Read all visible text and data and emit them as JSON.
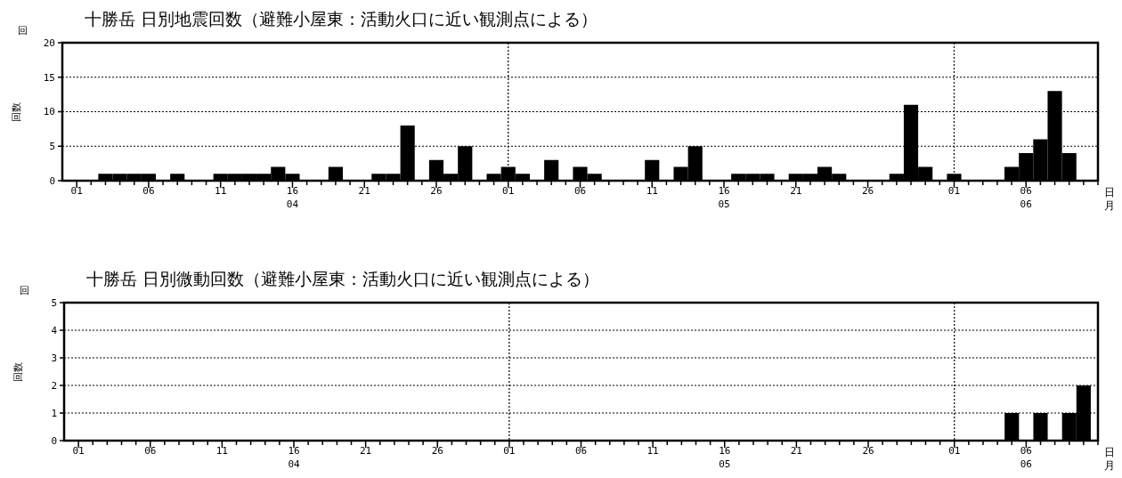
{
  "chart_data": [
    {
      "type": "bar",
      "title": "十勝岳 日別地震回数（避難小屋東：活動火口に近い観測点による）",
      "ylabel": "回数",
      "xlabel": "日月",
      "annotations": [
        "回"
      ],
      "x": [
        "--04-01",
        "--04-02",
        "--04-03",
        "--04-04",
        "--04-05",
        "--04-06",
        "--04-07",
        "--04-08",
        "--04-09",
        "--04-10",
        "--04-11",
        "--04-12",
        "--04-13",
        "--04-14",
        "--04-15",
        "--04-16",
        "--04-17",
        "--04-18",
        "--04-19",
        "--04-20",
        "--04-21",
        "--04-22",
        "--04-23",
        "--04-24",
        "--04-25",
        "--04-26",
        "--04-27",
        "--04-28",
        "--04-29",
        "--04-30",
        "--05-01",
        "--05-02",
        "--05-03",
        "--05-04",
        "--05-05",
        "--05-06",
        "--05-07",
        "--05-08",
        "--05-09",
        "--05-10",
        "--05-11",
        "--05-12",
        "--05-13",
        "--05-14",
        "--05-15",
        "--05-16",
        "--05-17",
        "--05-18",
        "--05-19",
        "--05-20",
        "--05-21",
        "--05-22",
        "--05-23",
        "--05-24",
        "--05-25",
        "--05-26",
        "--05-27",
        "--05-28",
        "--05-29",
        "--05-30",
        "--05-31",
        "--06-01",
        "--06-02",
        "--06-03",
        "--06-04",
        "--06-05",
        "--06-06",
        "--06-07",
        "--06-08",
        "--06-09",
        "--06-10"
      ],
      "values": [
        0,
        0,
        1,
        1,
        1,
        1,
        0,
        1,
        0,
        0,
        1,
        1,
        1,
        1,
        2,
        1,
        0,
        0,
        2,
        0,
        0,
        1,
        1,
        8,
        0,
        3,
        1,
        5,
        0,
        1,
        2,
        1,
        0,
        3,
        0,
        2,
        1,
        0,
        0,
        0,
        3,
        0,
        2,
        5,
        0,
        0,
        1,
        1,
        1,
        0,
        1,
        1,
        2,
        1,
        0,
        0,
        0,
        1,
        11,
        2,
        0,
        1,
        0,
        0,
        0,
        2,
        4,
        6,
        13,
        4,
        0
      ],
      "color": "#000000",
      "ylim": [
        0,
        20
      ],
      "yticks": [
        0,
        5,
        10,
        15,
        20
      ],
      "grid": "y",
      "xlim": [
        "--03-31",
        "--06-11"
      ],
      "xticks": [
        {
          "value": "--04-01",
          "label": "01"
        },
        {
          "value": "--04-02",
          "label": null
        },
        {
          "value": "--04-03",
          "label": null
        },
        {
          "value": "--04-04",
          "label": null
        },
        {
          "value": "--04-05",
          "label": null
        },
        {
          "value": "--04-06",
          "label": "06"
        },
        {
          "value": "--04-07",
          "label": null
        },
        {
          "value": "--04-08",
          "label": null
        },
        {
          "value": "--04-09",
          "label": null
        },
        {
          "value": "--04-10",
          "label": null
        },
        {
          "value": "--04-11",
          "label": "11"
        },
        {
          "value": "--04-12",
          "label": null
        },
        {
          "value": "--04-13",
          "label": null
        },
        {
          "value": "--04-14",
          "label": null
        },
        {
          "value": "--04-15",
          "label": null
        },
        {
          "value": "--04-16",
          "label": "16\n04"
        },
        {
          "value": "--04-17",
          "label": null
        },
        {
          "value": "--04-18",
          "label": null
        },
        {
          "value": "--04-19",
          "label": null
        },
        {
          "value": "--04-20",
          "label": null
        },
        {
          "value": "--04-21",
          "label": "21"
        },
        {
          "value": "--04-22",
          "label": null
        },
        {
          "value": "--04-23",
          "label": null
        },
        {
          "value": "--04-24",
          "label": null
        },
        {
          "value": "--04-25",
          "label": null
        },
        {
          "value": "--04-26",
          "label": "26"
        },
        {
          "value": "--04-27",
          "label": null
        },
        {
          "value": "--04-28",
          "label": null
        },
        {
          "value": "--04-29",
          "label": null
        },
        {
          "value": "--04-30",
          "label": null
        },
        {
          "value": "--05-01",
          "label": "01"
        },
        {
          "value": "--05-02",
          "label": null
        },
        {
          "value": "--05-03",
          "label": null
        },
        {
          "value": "--05-04",
          "label": null
        },
        {
          "value": "--05-05",
          "label": null
        },
        {
          "value": "--05-06",
          "label": "06"
        },
        {
          "value": "--05-07",
          "label": null
        },
        {
          "value": "--05-08",
          "label": null
        },
        {
          "value": "--05-09",
          "label": null
        },
        {
          "value": "--05-10",
          "label": null
        },
        {
          "value": "--05-11",
          "label": "11"
        },
        {
          "value": "--05-12",
          "label": null
        },
        {
          "value": "--05-13",
          "label": null
        },
        {
          "value": "--05-14",
          "label": null
        },
        {
          "value": "--05-15",
          "label": null
        },
        {
          "value": "--05-16",
          "label": "16\n05"
        },
        {
          "value": "--05-17",
          "label": null
        },
        {
          "value": "--05-18",
          "label": null
        },
        {
          "value": "--05-19",
          "label": null
        },
        {
          "value": "--05-20",
          "label": null
        },
        {
          "value": "--05-21",
          "label": "21"
        },
        {
          "value": "--05-22",
          "label": null
        },
        {
          "value": "--05-23",
          "label": null
        },
        {
          "value": "--05-24",
          "label": null
        },
        {
          "value": "--05-25",
          "label": null
        },
        {
          "value": "--05-26",
          "label": "26"
        },
        {
          "value": "--05-27",
          "label": null
        },
        {
          "value": "--05-28",
          "label": null
        },
        {
          "value": "--05-29",
          "label": null
        },
        {
          "value": "--05-30",
          "label": null
        },
        {
          "value": "--05-31",
          "label": null
        },
        {
          "value": "--06-01",
          "label": "01"
        },
        {
          "value": "--06-02",
          "label": null
        },
        {
          "value": "--06-03",
          "label": null
        },
        {
          "value": "--06-04",
          "label": null
        },
        {
          "value": "--06-05",
          "label": null
        },
        {
          "value": "--06-06",
          "label": "06\n06"
        },
        {
          "value": "--06-07",
          "label": null
        },
        {
          "value": "--06-08",
          "label": null
        },
        {
          "value": "--06-09",
          "label": null
        },
        {
          "value": "--06-10",
          "label": null
        },
        {
          "value": "--06-11",
          "label": null
        }
      ],
      "ref_lines": [
        {
          "axis": "x",
          "value": "--05-01",
          "line_style": "dotted"
        },
        {
          "axis": "x",
          "value": "--06-01",
          "line_style": "dotted"
        }
      ]
    },
    {
      "type": "bar",
      "title": "十勝岳 日別微動回数（避難小屋東：活動火口に近い観測点による）",
      "ylabel": "回数",
      "xlabel": "日月",
      "annotations": [
        "回"
      ],
      "x": [
        "--04-01",
        "--04-02",
        "--04-03",
        "--04-04",
        "--04-05",
        "--04-06",
        "--04-07",
        "--04-08",
        "--04-09",
        "--04-10",
        "--04-11",
        "--04-12",
        "--04-13",
        "--04-14",
        "--04-15",
        "--04-16",
        "--04-17",
        "--04-18",
        "--04-19",
        "--04-20",
        "--04-21",
        "--04-22",
        "--04-23",
        "--04-24",
        "--04-25",
        "--04-26",
        "--04-27",
        "--04-28",
        "--04-29",
        "--04-30",
        "--05-01",
        "--05-02",
        "--05-03",
        "--05-04",
        "--05-05",
        "--05-06",
        "--05-07",
        "--05-08",
        "--05-09",
        "--05-10",
        "--05-11",
        "--05-12",
        "--05-13",
        "--05-14",
        "--05-15",
        "--05-16",
        "--05-17",
        "--05-18",
        "--05-19",
        "--05-20",
        "--05-21",
        "--05-22",
        "--05-23",
        "--05-24",
        "--05-25",
        "--05-26",
        "--05-27",
        "--05-28",
        "--05-29",
        "--05-30",
        "--05-31",
        "--06-01",
        "--06-02",
        "--06-03",
        "--06-04",
        "--06-05",
        "--06-06",
        "--06-07",
        "--06-08",
        "--06-09",
        "--06-10"
      ],
      "values": [
        0,
        0,
        0,
        0,
        0,
        0,
        0,
        0,
        0,
        0,
        0,
        0,
        0,
        0,
        0,
        0,
        0,
        0,
        0,
        0,
        0,
        0,
        0,
        0,
        0,
        0,
        0,
        0,
        0,
        0,
        0,
        0,
        0,
        0,
        0,
        0,
        0,
        0,
        0,
        0,
        0,
        0,
        0,
        0,
        0,
        0,
        0,
        0,
        0,
        0,
        0,
        0,
        0,
        0,
        0,
        0,
        0,
        0,
        0,
        0,
        0,
        0,
        0,
        0,
        0,
        1,
        0,
        1,
        0,
        1,
        2
      ],
      "color": "#000000",
      "ylim": [
        0,
        5
      ],
      "yticks": [
        0,
        1,
        2,
        3,
        4,
        5
      ],
      "grid": "y",
      "xlim": [
        "--03-31",
        "--06-11"
      ],
      "xticks": [
        {
          "value": "--04-01",
          "label": "01"
        },
        {
          "value": "--04-02",
          "label": null
        },
        {
          "value": "--04-03",
          "label": null
        },
        {
          "value": "--04-04",
          "label": null
        },
        {
          "value": "--04-05",
          "label": null
        },
        {
          "value": "--04-06",
          "label": "06"
        },
        {
          "value": "--04-07",
          "label": null
        },
        {
          "value": "--04-08",
          "label": null
        },
        {
          "value": "--04-09",
          "label": null
        },
        {
          "value": "--04-10",
          "label": null
        },
        {
          "value": "--04-11",
          "label": "11"
        },
        {
          "value": "--04-12",
          "label": null
        },
        {
          "value": "--04-13",
          "label": null
        },
        {
          "value": "--04-14",
          "label": null
        },
        {
          "value": "--04-15",
          "label": null
        },
        {
          "value": "--04-16",
          "label": "16\n04"
        },
        {
          "value": "--04-17",
          "label": null
        },
        {
          "value": "--04-18",
          "label": null
        },
        {
          "value": "--04-19",
          "label": null
        },
        {
          "value": "--04-20",
          "label": null
        },
        {
          "value": "--04-21",
          "label": "21"
        },
        {
          "value": "--04-22",
          "label": null
        },
        {
          "value": "--04-23",
          "label": null
        },
        {
          "value": "--04-24",
          "label": null
        },
        {
          "value": "--04-25",
          "label": null
        },
        {
          "value": "--04-26",
          "label": "26"
        },
        {
          "value": "--04-27",
          "label": null
        },
        {
          "value": "--04-28",
          "label": null
        },
        {
          "value": "--04-29",
          "label": null
        },
        {
          "value": "--04-30",
          "label": null
        },
        {
          "value": "--05-01",
          "label": "01"
        },
        {
          "value": "--05-02",
          "label": null
        },
        {
          "value": "--05-03",
          "label": null
        },
        {
          "value": "--05-04",
          "label": null
        },
        {
          "value": "--05-05",
          "label": null
        },
        {
          "value": "--05-06",
          "label": "06"
        },
        {
          "value": "--05-07",
          "label": null
        },
        {
          "value": "--05-08",
          "label": null
        },
        {
          "value": "--05-09",
          "label": null
        },
        {
          "value": "--05-10",
          "label": null
        },
        {
          "value": "--05-11",
          "label": "11"
        },
        {
          "value": "--05-12",
          "label": null
        },
        {
          "value": "--05-13",
          "label": null
        },
        {
          "value": "--05-14",
          "label": null
        },
        {
          "value": "--05-15",
          "label": null
        },
        {
          "value": "--05-16",
          "label": "16\n05"
        },
        {
          "value": "--05-17",
          "label": null
        },
        {
          "value": "--05-18",
          "label": null
        },
        {
          "value": "--05-19",
          "label": null
        },
        {
          "value": "--05-20",
          "label": null
        },
        {
          "value": "--05-21",
          "label": "21"
        },
        {
          "value": "--05-22",
          "label": null
        },
        {
          "value": "--05-23",
          "label": null
        },
        {
          "value": "--05-24",
          "label": null
        },
        {
          "value": "--05-25",
          "label": null
        },
        {
          "value": "--05-26",
          "label": "26"
        },
        {
          "value": "--05-27",
          "label": null
        },
        {
          "value": "--05-28",
          "label": null
        },
        {
          "value": "--05-29",
          "label": null
        },
        {
          "value": "--05-30",
          "label": null
        },
        {
          "value": "--05-31",
          "label": null
        },
        {
          "value": "--06-01",
          "label": "01"
        },
        {
          "value": "--06-02",
          "label": null
        },
        {
          "value": "--06-03",
          "label": null
        },
        {
          "value": "--06-04",
          "label": null
        },
        {
          "value": "--06-05",
          "label": null
        },
        {
          "value": "--06-06",
          "label": "06\n06"
        },
        {
          "value": "--06-07",
          "label": null
        },
        {
          "value": "--06-08",
          "label": null
        },
        {
          "value": "--06-09",
          "label": null
        },
        {
          "value": "--06-10",
          "label": null
        },
        {
          "value": "--06-11",
          "label": null
        }
      ],
      "ref_lines": [
        {
          "axis": "x",
          "value": "--05-01",
          "line_style": "dotted"
        },
        {
          "axis": "x",
          "value": "--06-01",
          "line_style": "dotted"
        }
      ]
    }
  ]
}
